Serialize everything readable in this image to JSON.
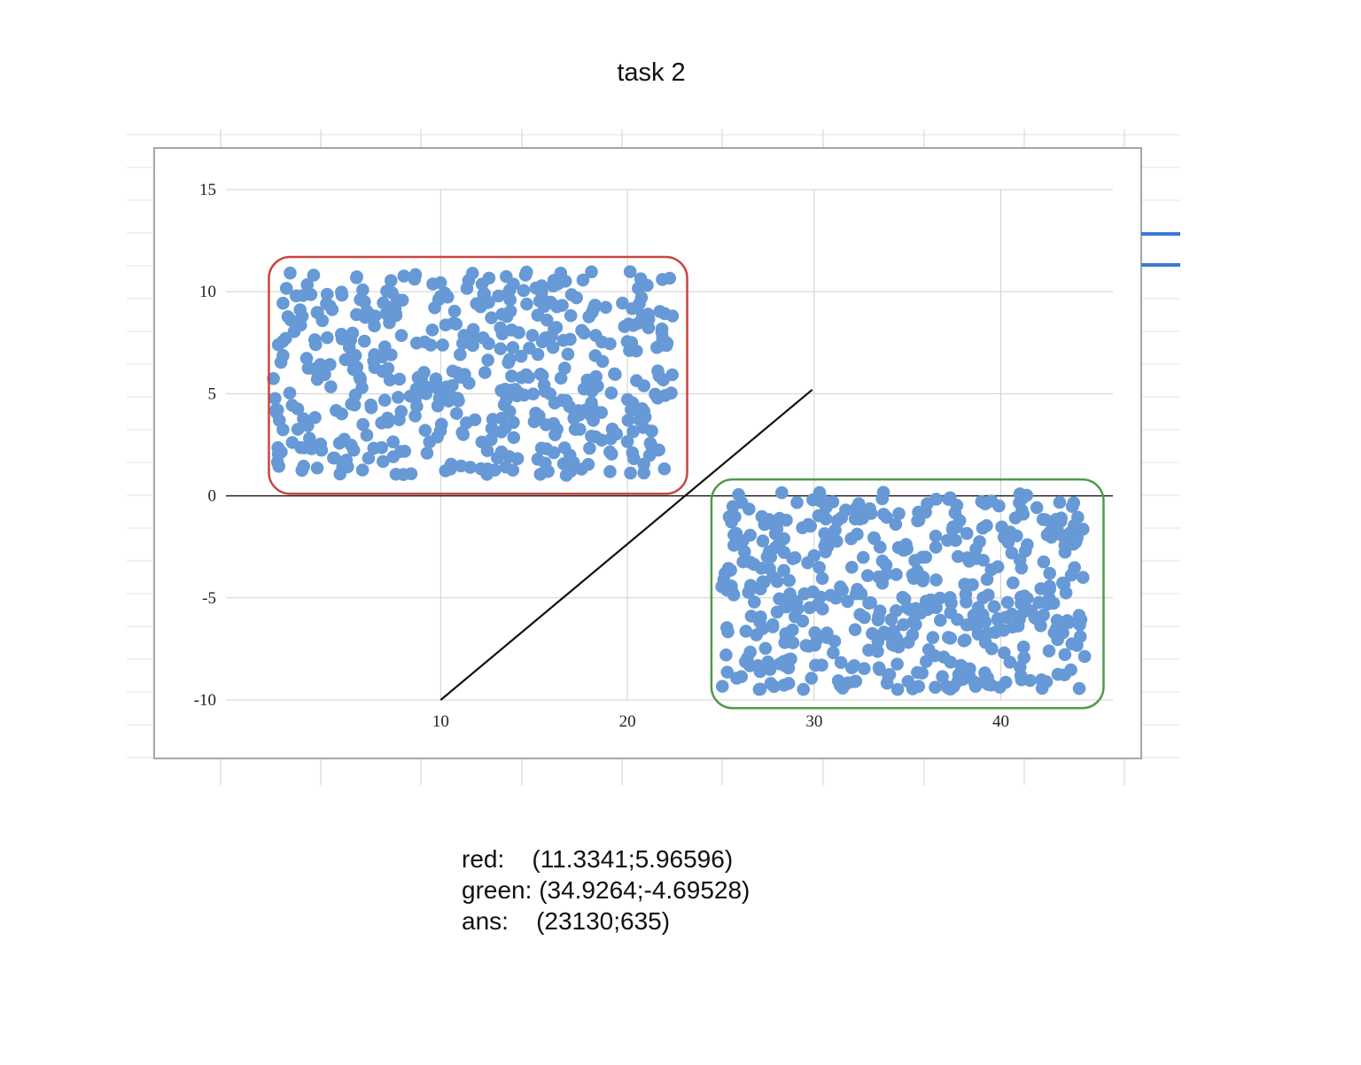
{
  "title": "task 2",
  "chart_data": {
    "type": "scatter",
    "title": "task 2",
    "xlabel": "",
    "ylabel": "",
    "xlim": [
      -1.5,
      46
    ],
    "ylim": [
      -10,
      15
    ],
    "x_ticks": [
      "10",
      "20",
      "30",
      "40"
    ],
    "x_tick_values": [
      10,
      20,
      30,
      40
    ],
    "y_ticks": [
      "15",
      "10",
      "5",
      "0",
      "-5",
      "-10"
    ],
    "y_tick_values": [
      15,
      10,
      5,
      0,
      -5,
      -10
    ],
    "grid": true,
    "point_color": "#6699d6",
    "series": [
      {
        "cluster": "red-region",
        "x_range": [
          1,
          22.5
        ],
        "y_range": [
          1,
          11
        ],
        "count": 480
      },
      {
        "cluster": "green-region",
        "x_range": [
          25,
          44.5
        ],
        "y_range": [
          -9.5,
          0.2
        ],
        "count": 480
      }
    ],
    "annotations": [
      {
        "kind": "freehand-box",
        "color": "#c8453f",
        "x_range": [
          0.8,
          23.2
        ],
        "y_range": [
          0.1,
          11.7
        ]
      },
      {
        "kind": "freehand-box",
        "color": "#4e9a4e",
        "x_range": [
          24.5,
          45.5
        ],
        "y_range": [
          -10.4,
          0.8
        ]
      },
      {
        "kind": "line",
        "color": "#111111",
        "from": [
          10,
          -10
        ],
        "to": [
          29.9,
          5.2
        ]
      }
    ]
  },
  "notes": [
    {
      "label": "red:",
      "value": "(11.3341;5.96596)"
    },
    {
      "label": "green:",
      "value": "(34.9264;-4.69528)"
    },
    {
      "label": "ans:",
      "value": "(23130;635)"
    }
  ],
  "colors": {
    "background": "#ffffff",
    "frame": "#a6a6a6",
    "gridline": "#d0d0d0",
    "legend_line": "#3d78d8"
  }
}
